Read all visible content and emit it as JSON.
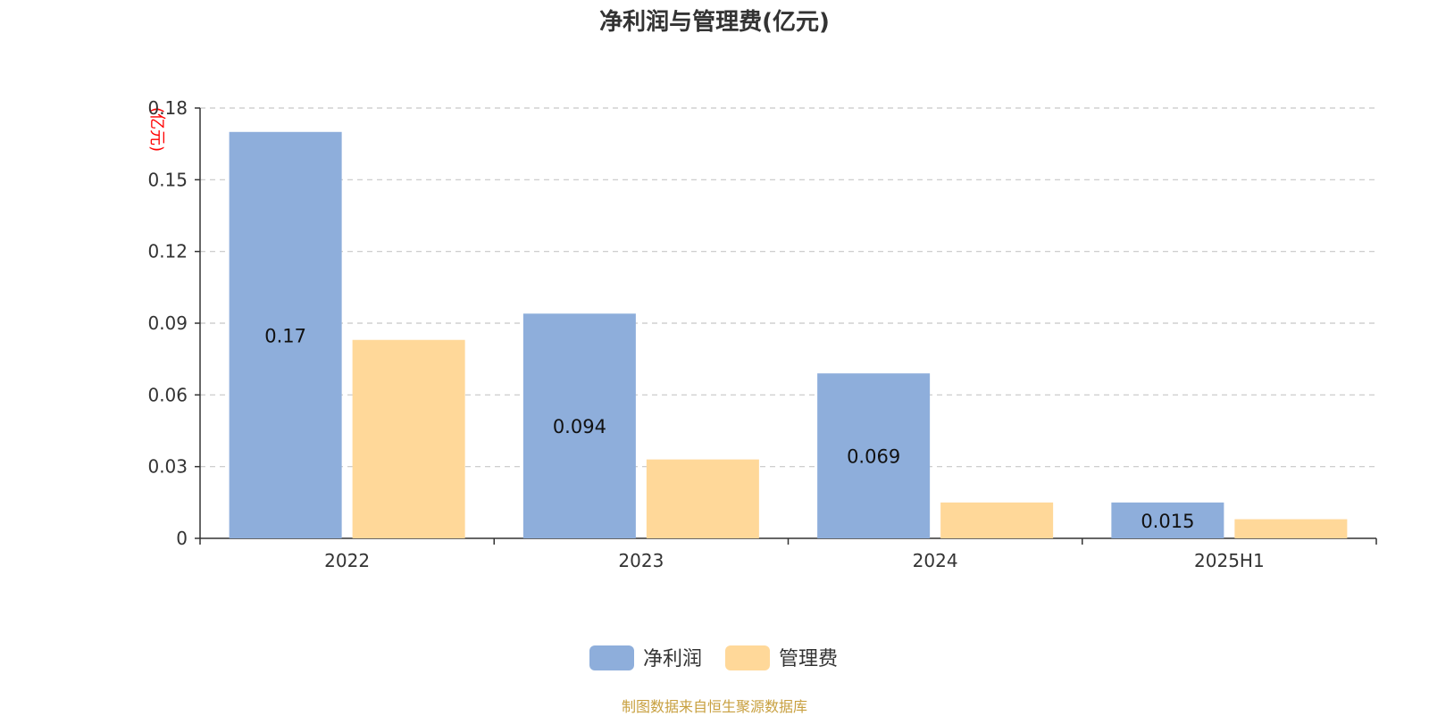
{
  "title": "净利润与管理费(亿元)",
  "source": "制图数据来自恒生聚源数据库",
  "chart_data": {
    "type": "bar",
    "title": "净利润与管理费(亿元)",
    "unit_label": "(亿元)",
    "categories": [
      "2022",
      "2023",
      "2024",
      "2025H1"
    ],
    "series": [
      {
        "name": "净利润",
        "color": "#8eaedb",
        "values": [
          0.17,
          0.094,
          0.069,
          0.015
        ],
        "labels": [
          "0.17",
          "0.094",
          "0.069",
          "0.015"
        ]
      },
      {
        "name": "管理费",
        "color": "#ffd899",
        "values": [
          0.083,
          0.033,
          0.015,
          0.008
        ]
      }
    ],
    "ylim": [
      0,
      0.18
    ],
    "yticks": [
      "0",
      "0.03",
      "0.06",
      "0.09",
      "0.12",
      "0.15",
      "0.18"
    ],
    "grid": true,
    "legend_position": "bottom-center"
  }
}
